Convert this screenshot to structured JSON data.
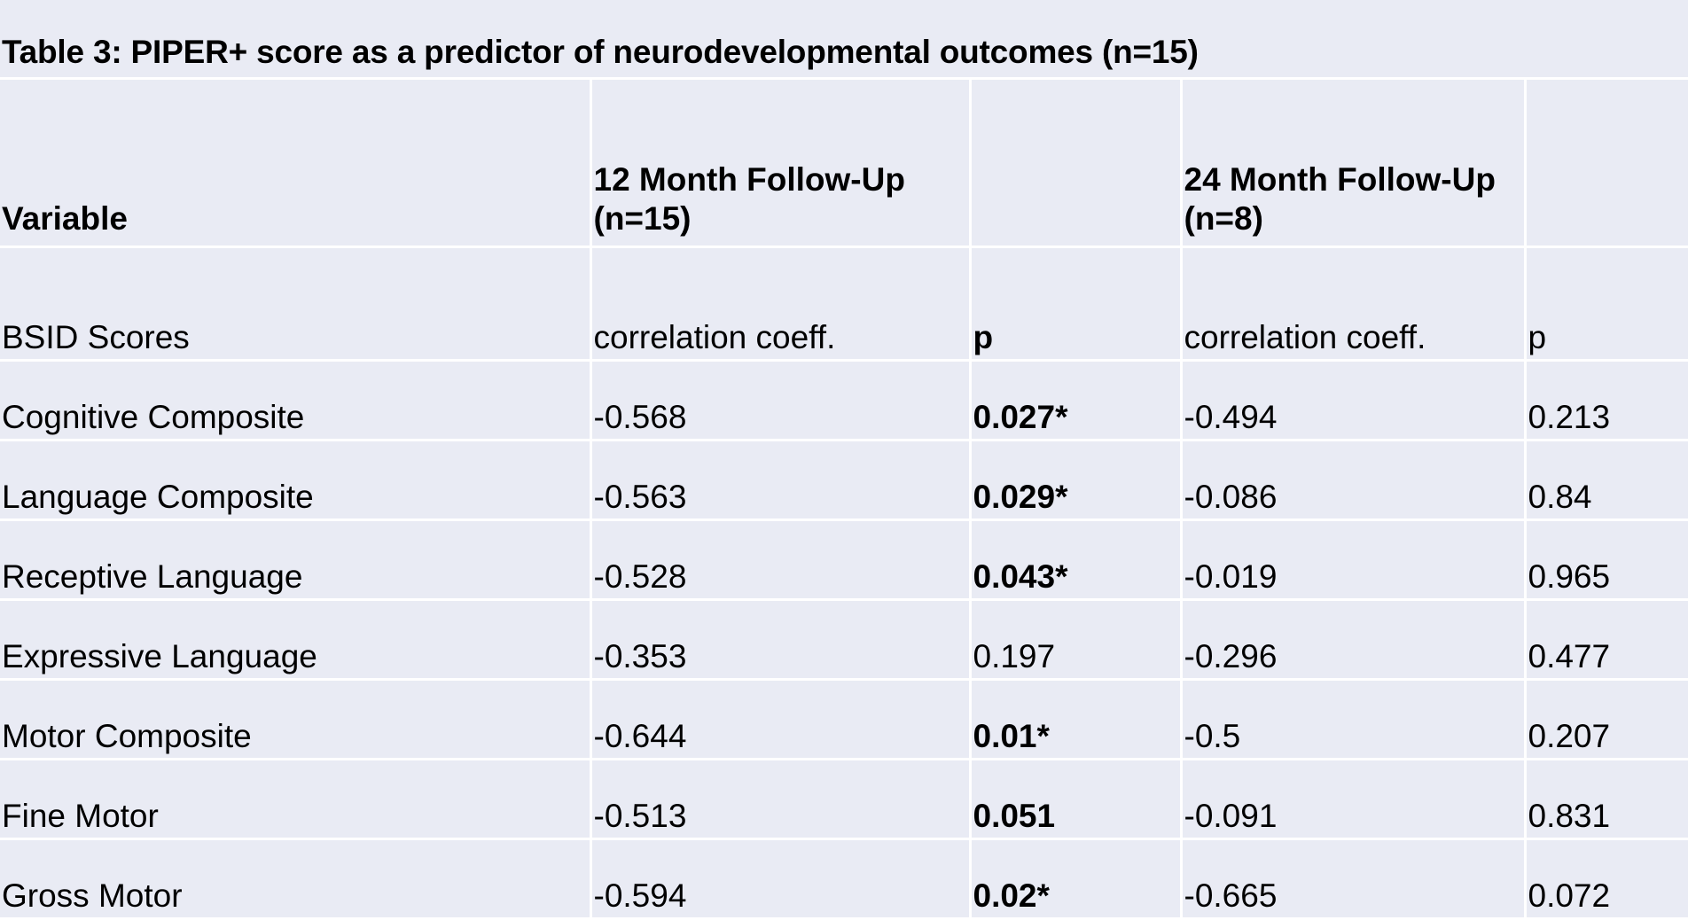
{
  "title": "Table 3: PIPER+ score as a predictor of neurodevelopmental outcomes (n=15)",
  "header": {
    "variable": "Variable",
    "followup_12_line1": "12 Month Follow-Up",
    "followup_12_line2": "(n=15)",
    "followup_24_line1": "24 Month Follow-Up",
    "followup_24_line2": "(n=8)",
    "blank_1": "",
    "blank_2": ""
  },
  "subheader": {
    "label": "BSID Scores",
    "coeff_12": "correlation coeff.",
    "p_12": "p",
    "coeff_24": "correlation coeff.",
    "p_24": "p"
  },
  "rows": [
    {
      "variable": "Cognitive Composite",
      "coeff_12": "-0.568",
      "p_12": "0.027*",
      "p_12_bold": true,
      "coeff_24": "-0.494",
      "p_24": "0.213"
    },
    {
      "variable": "Language Composite",
      "coeff_12": "-0.563",
      "p_12": "0.029*",
      "p_12_bold": true,
      "coeff_24": "-0.086",
      "p_24": "0.84"
    },
    {
      "variable": "Receptive Language",
      "coeff_12": "-0.528",
      "p_12": "0.043*",
      "p_12_bold": true,
      "coeff_24": "-0.019",
      "p_24": "0.965"
    },
    {
      "variable": "Expressive Language",
      "coeff_12": "-0.353",
      "p_12": "0.197",
      "p_12_bold": false,
      "coeff_24": "-0.296",
      "p_24": "0.477"
    },
    {
      "variable": "Motor Composite",
      "coeff_12": "-0.644",
      "p_12": "0.01*",
      "p_12_bold": true,
      "coeff_24": "-0.5",
      "p_24": "0.207"
    },
    {
      "variable": "Fine Motor",
      "coeff_12": "-0.513",
      "p_12": "0.051",
      "p_12_bold": true,
      "coeff_24": "-0.091",
      "p_24": "0.831"
    },
    {
      "variable": "Gross Motor",
      "coeff_12": "-0.594",
      "p_12": "0.02*",
      "p_12_bold": true,
      "coeff_24": "-0.665",
      "p_24": "0.072"
    }
  ],
  "colors": {
    "background": "#e9ebf4",
    "grid_lines": "#ffffff",
    "text": "#000000"
  }
}
